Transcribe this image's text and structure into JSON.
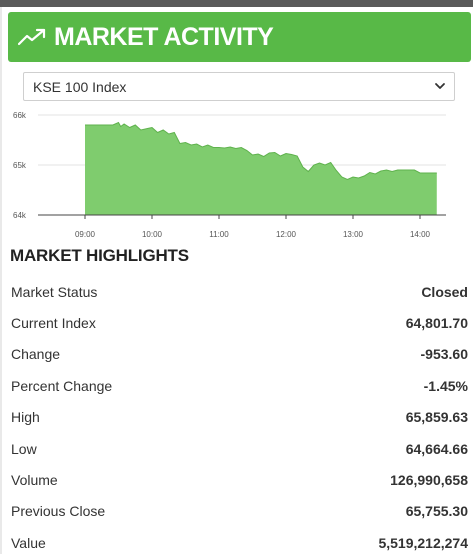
{
  "header": {
    "title": "MARKET ACTIVITY",
    "icon": "trending-up-icon"
  },
  "index_select": {
    "selected": "KSE 100 Index"
  },
  "colors": {
    "header_green": "#58b947",
    "chart_fill": "#7fcc6e",
    "chart_line": "#5fb24d"
  },
  "chart_data": {
    "type": "area",
    "title": "",
    "xlabel": "",
    "ylabel": "",
    "y_tick_labels": [
      "66k",
      "65k",
      "64k"
    ],
    "x_tick_labels": [
      "09:00",
      "10:00",
      "11:00",
      "12:00",
      "13:00",
      "14:00"
    ],
    "ylim": [
      64000,
      66000
    ],
    "xlim": [
      "09:00",
      "14:00"
    ],
    "grid": true,
    "series": [
      {
        "x": [
          "09:00",
          "09:10",
          "09:20",
          "09:25",
          "09:30",
          "09:32",
          "09:35",
          "09:40",
          "09:45",
          "09:50",
          "10:00",
          "10:05",
          "10:10",
          "10:15",
          "10:20",
          "10:25",
          "10:30",
          "10:35",
          "10:40",
          "10:45",
          "10:50",
          "10:55",
          "11:00",
          "11:05",
          "11:10",
          "11:15",
          "11:20",
          "11:25",
          "11:30",
          "11:35",
          "11:40",
          "11:45",
          "11:50",
          "11:55",
          "12:00",
          "12:05",
          "12:10",
          "12:15",
          "12:20",
          "12:25",
          "12:30",
          "12:35",
          "12:40",
          "12:45",
          "12:50",
          "12:55",
          "13:00",
          "13:05",
          "13:10",
          "13:15",
          "13:20",
          "13:25",
          "13:30",
          "13:35",
          "13:40",
          "13:45",
          "13:50",
          "13:55",
          "14:00",
          "14:05",
          "14:15"
        ],
        "values": [
          65800,
          65800,
          65800,
          65800,
          65850,
          65770,
          65820,
          65750,
          65800,
          65700,
          65750,
          65650,
          65700,
          65620,
          65650,
          65430,
          65450,
          65400,
          65420,
          65360,
          65400,
          65350,
          65350,
          65340,
          65360,
          65330,
          65350,
          65290,
          65200,
          65220,
          65170,
          65240,
          65250,
          65180,
          65230,
          65210,
          65180,
          64960,
          64870,
          65000,
          65040,
          65000,
          65050,
          64890,
          64760,
          64710,
          64760,
          64740,
          64780,
          64850,
          64820,
          64880,
          64900,
          64870,
          64900,
          64900,
          64900,
          64900,
          64840,
          64840,
          64840
        ]
      }
    ]
  },
  "highlights": {
    "title": "MARKET HIGHLIGHTS",
    "rows": [
      {
        "label": "Market Status",
        "value": "Closed"
      },
      {
        "label": "Current Index",
        "value": "64,801.70"
      },
      {
        "label": "Change",
        "value": "-953.60"
      },
      {
        "label": "Percent Change",
        "value": "-1.45%"
      },
      {
        "label": "High",
        "value": "65,859.63"
      },
      {
        "label": "Low",
        "value": "64,664.66"
      },
      {
        "label": "Volume",
        "value": "126,990,658"
      },
      {
        "label": "Previous Close",
        "value": "65,755.30"
      },
      {
        "label": "Value",
        "value": "5,519,212,274"
      }
    ]
  }
}
